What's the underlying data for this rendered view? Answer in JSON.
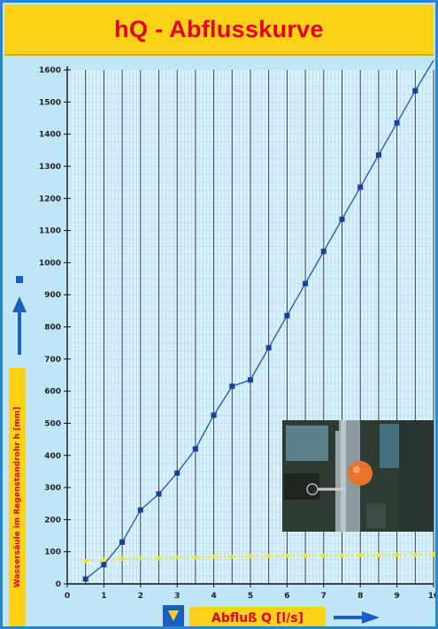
{
  "title": "hQ - Abflusskurve",
  "colors": {
    "title_bg": "#ffd21a",
    "title_text": "#e8001f",
    "plot_bg": "#d9f1fb",
    "line": "#1b56b3",
    "marker": "#1a3f9a",
    "threshold": "#f2e600",
    "label_box": "#ffd21a",
    "label_text": "#e8001f",
    "arrow": "#1a5fc0"
  },
  "icons": {
    "y_arrow": "up-arrow-icon",
    "x_arrow": "right-arrow-icon",
    "x_marker": "down-arrow-icon",
    "legend_marker": "square-marker-icon"
  },
  "chart_data": {
    "type": "line",
    "title": "hQ - Abflusskurve",
    "xlabel": "Abfluß Q [l/s]",
    "ylabel": "Wassersäule im Regenstandrohr h [mm]",
    "xlim": [
      0,
      10
    ],
    "ylim": [
      0,
      1600
    ],
    "x_ticks": [
      0,
      1,
      2,
      3,
      4,
      5,
      6,
      7,
      8,
      9,
      10
    ],
    "y_ticks": [
      0,
      100,
      200,
      300,
      400,
      500,
      600,
      700,
      800,
      900,
      1000,
      1100,
      1200,
      1300,
      1400,
      1500,
      1600
    ],
    "grid": true,
    "series": [
      {
        "name": "",
        "style": "line-with-square-markers",
        "x": [
          0.5,
          1.0,
          1.5,
          2.0,
          2.5,
          3.0,
          3.5,
          4.0,
          4.5,
          5.0,
          5.5,
          6.0,
          6.5,
          7.0,
          7.5,
          8.0,
          8.5,
          9.0,
          9.5,
          10.0
        ],
        "y": [
          15,
          60,
          130,
          230,
          280,
          345,
          420,
          525,
          615,
          635,
          735,
          835,
          935,
          1035,
          1135,
          1235,
          1335,
          1435,
          1535,
          1630
        ]
      },
      {
        "name": "",
        "style": "dashed-yellow-dots",
        "x": [
          0.5,
          1.0,
          1.5,
          2.0,
          2.5,
          3.0,
          3.5,
          4.0,
          4.5,
          5.0,
          5.5,
          6.0,
          6.5,
          7.0,
          7.5,
          8.0,
          8.5,
          9.0,
          9.5,
          10.0
        ],
        "y": [
          70,
          75,
          78,
          80,
          80,
          82,
          82,
          84,
          84,
          86,
          86,
          87,
          88,
          88,
          89,
          90,
          90,
          91,
          91,
          92
        ]
      }
    ],
    "inset": "photo of standpipe with orange float"
  }
}
